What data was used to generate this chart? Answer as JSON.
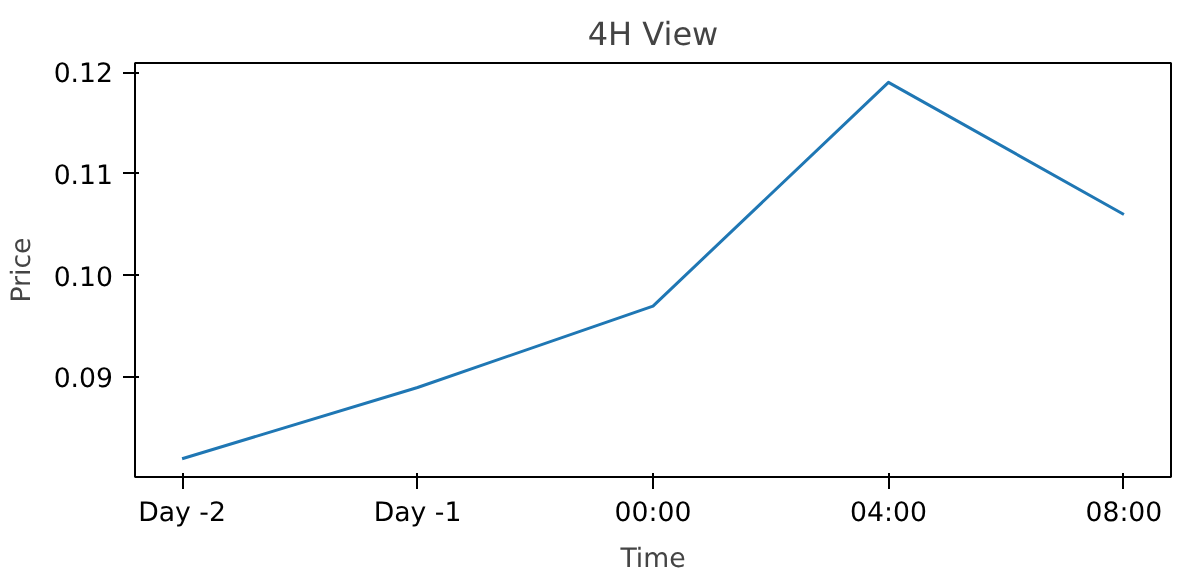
{
  "chart_data": {
    "type": "line",
    "title": "4H View",
    "xlabel": "Time",
    "ylabel": "Price",
    "categories": [
      "Day -2",
      "Day -1",
      "00:00",
      "04:00",
      "08:00"
    ],
    "series": [
      {
        "color": "#1f77b4",
        "values": [
          0.082,
          0.089,
          0.097,
          0.119,
          0.106
        ]
      }
    ],
    "ylim": [
      0.0802,
      0.1209
    ],
    "yticks": [
      0.09,
      {
        "value": 0.1,
        "label": "0.10"
      },
      0.11,
      0.12
    ],
    "grid": false
  }
}
